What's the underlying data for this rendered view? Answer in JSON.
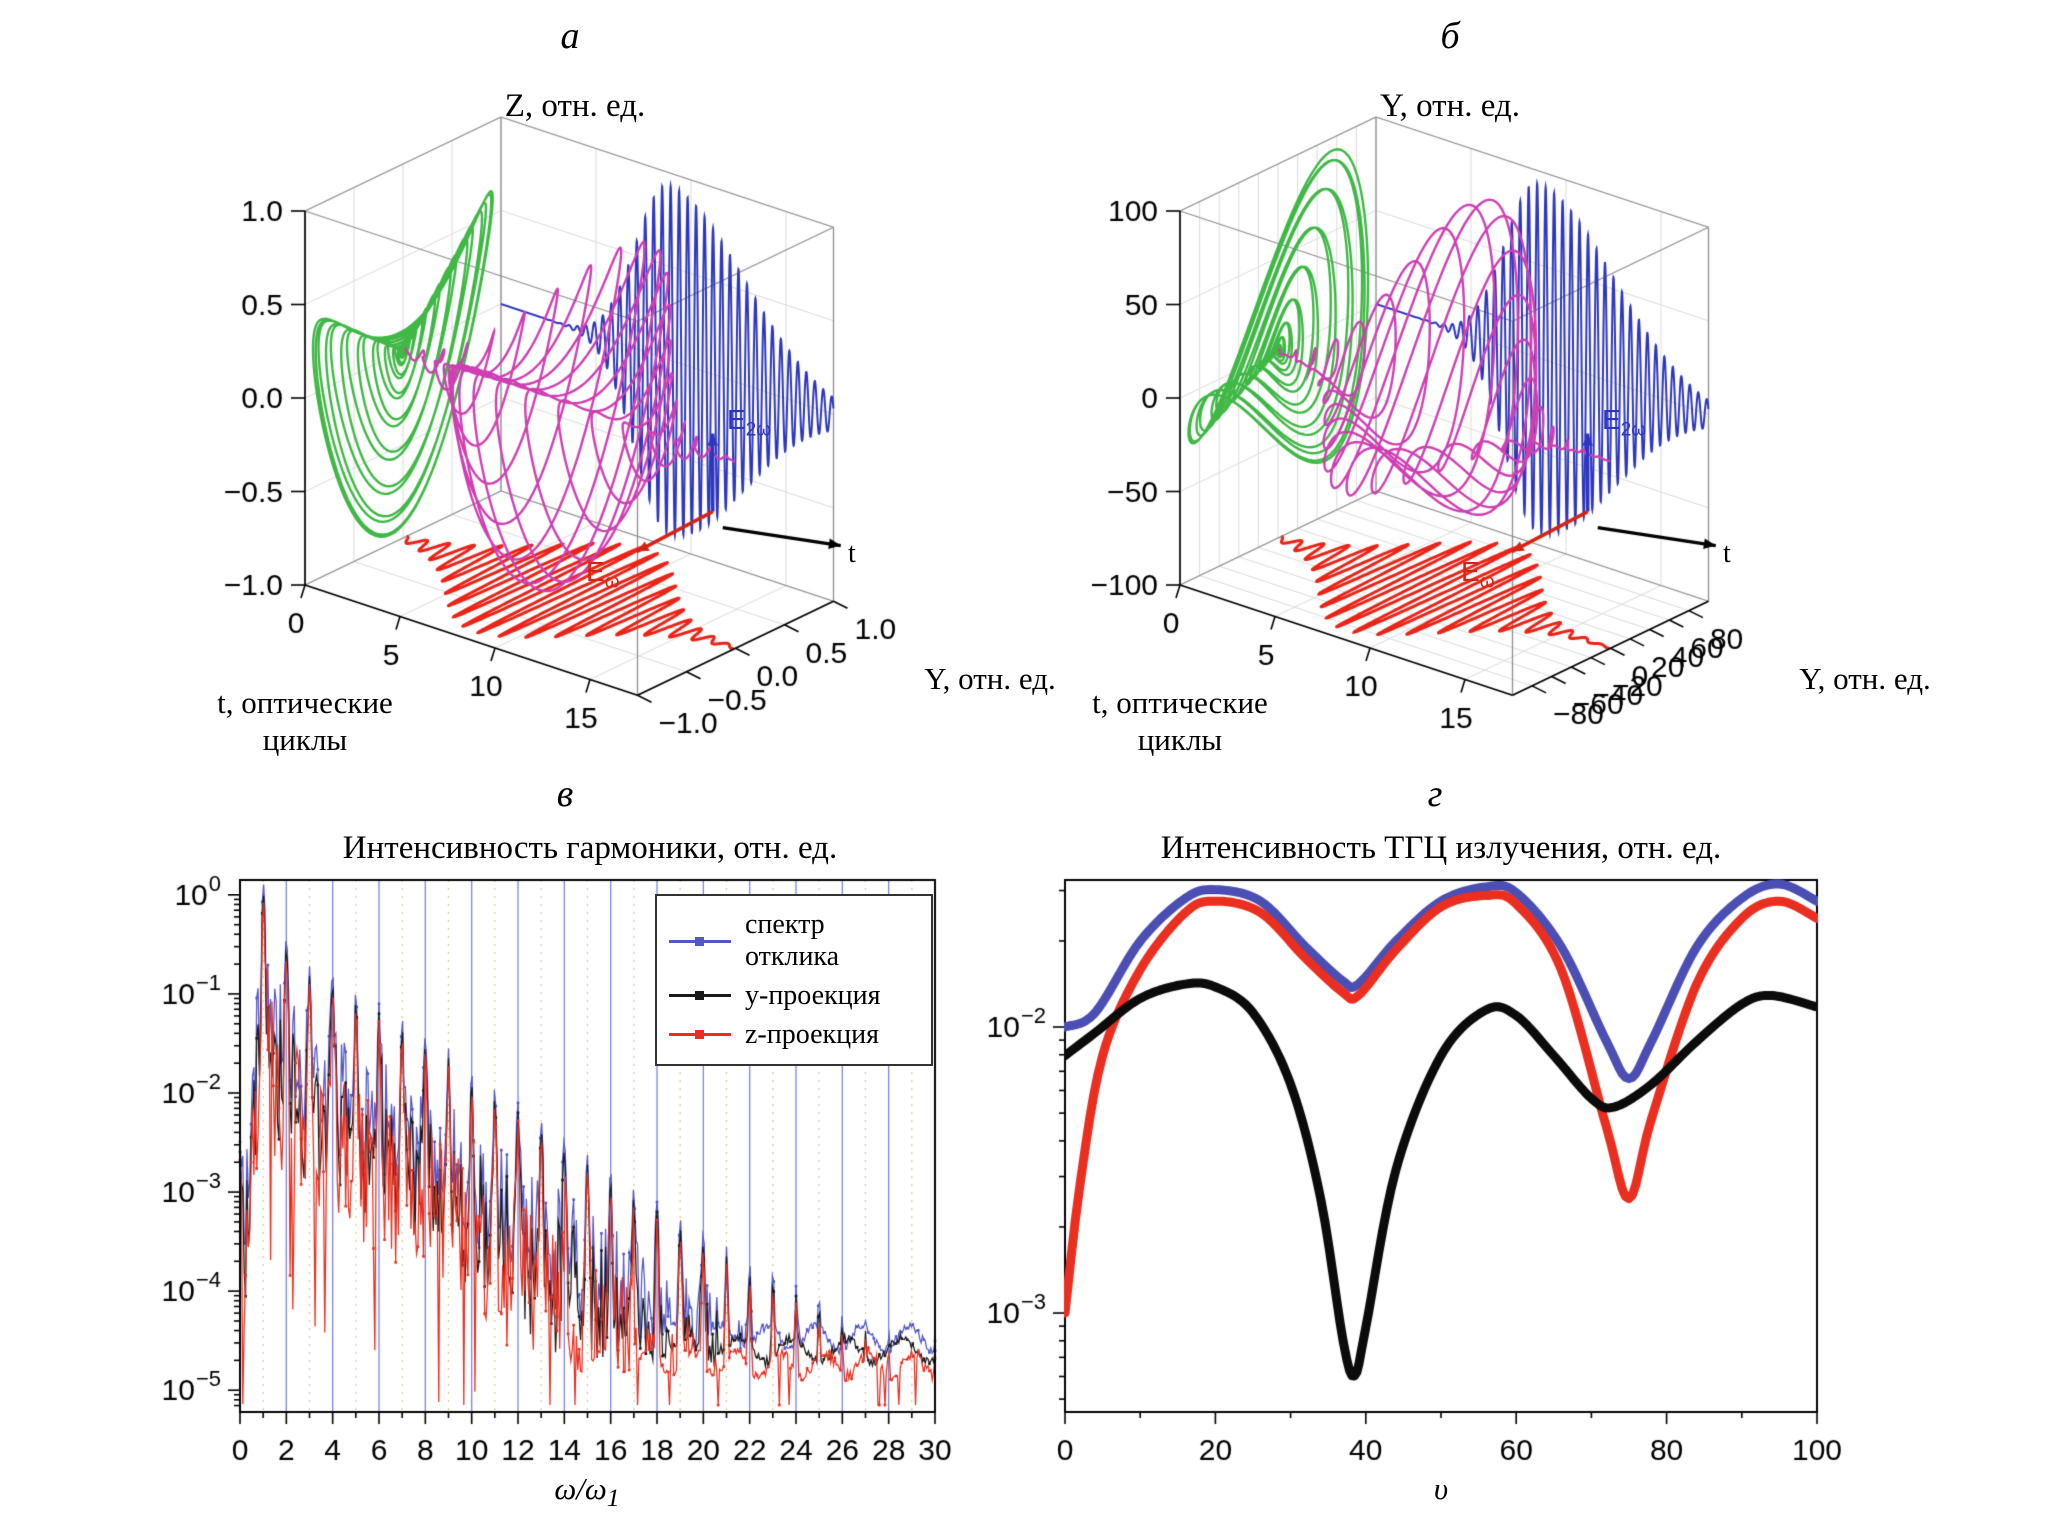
{
  "figure": {
    "background": "#ffffff"
  },
  "chart_data": [
    {
      "id": "a",
      "type": "3d-trajectory",
      "panel_label": "а",
      "title": "Z, отн. ед.",
      "axes": {
        "z": {
          "ticks": [
            "1.0",
            "0.5",
            "0.0",
            "−0.5",
            "−1.0"
          ],
          "tick_values": [
            1,
            0.5,
            0,
            -0.5,
            -1
          ],
          "scale": 1,
          "range": [
            -1,
            1
          ]
        },
        "t": {
          "label": "t, оптические циклы",
          "ticks": [
            "0",
            "5",
            "10",
            "15"
          ],
          "tick_values": [
            0,
            5,
            10,
            15
          ],
          "range": [
            0,
            17.5
          ]
        },
        "y": {
          "label": "Y, отн. ед.",
          "ticks": [
            "−1.0",
            "−0.5",
            "0.0",
            "0.5",
            "1.0"
          ],
          "tick_values": [
            -1,
            -0.5,
            0,
            0.5,
            1
          ],
          "scale": 1,
          "range": [
            -1,
            1
          ]
        }
      },
      "series": [
        {
          "name": "yz-projection",
          "color": "#3fb845"
        },
        {
          "name": "3d-trajectory",
          "color": "#cf3fb3"
        },
        {
          "name": "second-harmonic-waveform",
          "color": "#2d36c0"
        },
        {
          "name": "fundamental-waveform",
          "color": "#ec2317"
        }
      ],
      "annotations": [
        {
          "base": "E",
          "sub": "2ω",
          "color": "#2d36c0"
        },
        {
          "base": "E",
          "sub": "ω",
          "color": "#d42414"
        },
        {
          "base": "t",
          "sub": "",
          "color": "#000000"
        }
      ],
      "signal": {
        "env_center": 8.3,
        "env_sigma": 2.9,
        "f_fund": 1.12,
        "f_sh": 2.24,
        "phase": 0.2
      }
    },
    {
      "id": "b",
      "type": "3d-trajectory",
      "panel_label": "б",
      "title": "Y, отн. ед.",
      "axes": {
        "z": {
          "ticks": [
            "100",
            "50",
            "0",
            "−50",
            "−100"
          ],
          "tick_values": [
            100,
            50,
            0,
            -50,
            -100
          ],
          "scale": 100,
          "range": [
            -100,
            100
          ]
        },
        "t": {
          "label": "t, оптические циклы",
          "ticks": [
            "0",
            "5",
            "10",
            "15"
          ],
          "tick_values": [
            0,
            5,
            10,
            15
          ],
          "range": [
            0,
            17.5
          ]
        },
        "y": {
          "label": "Y, отн. ед.",
          "ticks": [
            "−80",
            "−60",
            "−40",
            "−20",
            "0",
            "20",
            "40",
            "60",
            "80"
          ],
          "tick_values": [
            -80,
            -60,
            -40,
            -20,
            0,
            20,
            40,
            60,
            80
          ],
          "scale": 100,
          "range": [
            -100,
            100
          ]
        }
      },
      "series": [
        {
          "name": "yz-projection",
          "color": "#3fb845"
        },
        {
          "name": "3d-trajectory",
          "color": "#cf3fb3"
        },
        {
          "name": "second-harmonic-waveform",
          "color": "#2d36c0"
        },
        {
          "name": "fundamental-waveform",
          "color": "#ec2317"
        }
      ],
      "annotations": [
        {
          "base": "E",
          "sub": "2ω",
          "color": "#2d36c0"
        },
        {
          "base": "E",
          "sub": "ω",
          "color": "#d42414"
        },
        {
          "base": "t",
          "sub": "",
          "color": "#000000"
        }
      ],
      "signal": {
        "env_center": 8.0,
        "env_sigma": 2.7,
        "f_fund": 1.12,
        "f_sh": 2.24,
        "phase": 1.1
      }
    },
    {
      "id": "v",
      "type": "log-spectrum",
      "panel_label": "в",
      "title": "Интенсивность гармоники, отн. ед.",
      "xlabel_base": "ω/ω",
      "xlabel_sub": "1",
      "x_ticks": [
        "0",
        "2",
        "4",
        "6",
        "8",
        "10",
        "12",
        "14",
        "16",
        "18",
        "20",
        "22",
        "24",
        "26",
        "28",
        "30"
      ],
      "x_tick_values": [
        0,
        2,
        4,
        6,
        8,
        10,
        12,
        14,
        16,
        18,
        20,
        22,
        24,
        26,
        28,
        30
      ],
      "y_tick_exponents": [
        0,
        -1,
        -2,
        -3,
        -4,
        -5
      ],
      "x_range": [
        0,
        30
      ],
      "y_range_exp": [
        -5.22,
        0.15
      ],
      "gridline_color": "#7d85d8",
      "minor_grid_color": "#dcc793",
      "legend": [
        {
          "label": "спектр отклика",
          "color": "#5157c8"
        },
        {
          "label": "y-проекция",
          "color": "#1a1a1a"
        },
        {
          "label": "z-проекция",
          "color": "#ea2e1f"
        }
      ],
      "envelope_log10": [
        [
          0,
          -2.5
        ],
        [
          0.7,
          -0.75
        ],
        [
          1,
          -0.15
        ],
        [
          2,
          -0.45
        ],
        [
          3,
          -0.72
        ],
        [
          4,
          -0.8
        ],
        [
          5,
          -0.98
        ],
        [
          6,
          -1.1
        ],
        [
          7,
          -1.25
        ],
        [
          8,
          -1.4
        ],
        [
          9,
          -1.55
        ],
        [
          10,
          -1.8
        ],
        [
          12,
          -2.1
        ],
        [
          14,
          -2.45
        ],
        [
          16,
          -2.8
        ],
        [
          18,
          -3.1
        ],
        [
          20,
          -3.4
        ],
        [
          22,
          -3.7
        ],
        [
          24,
          -3.95
        ],
        [
          26,
          -4.2
        ],
        [
          28,
          -4.4
        ],
        [
          30,
          -4.5
        ]
      ]
    },
    {
      "id": "g",
      "type": "log-line",
      "panel_label": "г",
      "title": "Интенсивность ТГЦ излучения, отн. ед.",
      "xlabel": "υ",
      "x_ticks": [
        "0",
        "20",
        "40",
        "60",
        "80",
        "100"
      ],
      "x_tick_values": [
        0,
        20,
        40,
        60,
        80,
        100
      ],
      "y_tick_exponents": [
        -2,
        -3
      ],
      "x_range": [
        0,
        100
      ],
      "y_range_exp": [
        -3.346,
        -1.486
      ],
      "series": [
        {
          "name": "total-spectrum",
          "color": "#4b4fb4",
          "points_log10": [
            [
              0,
              -2.0
            ],
            [
              4,
              -1.95
            ],
            [
              10,
              -1.7
            ],
            [
              16,
              -1.55
            ],
            [
              20,
              -1.52
            ],
            [
              26,
              -1.56
            ],
            [
              32,
              -1.72
            ],
            [
              37,
              -1.84
            ],
            [
              39,
              -1.85
            ],
            [
              44,
              -1.7
            ],
            [
              50,
              -1.56
            ],
            [
              56,
              -1.51
            ],
            [
              60,
              -1.53
            ],
            [
              66,
              -1.72
            ],
            [
              72,
              -2.05
            ],
            [
              75,
              -2.18
            ],
            [
              78,
              -2.05
            ],
            [
              84,
              -1.72
            ],
            [
              90,
              -1.55
            ],
            [
              95,
              -1.5
            ],
            [
              100,
              -1.56
            ]
          ]
        },
        {
          "name": "z-projection",
          "color": "#ea2e1f",
          "points_log10": [
            [
              0,
              -3.0
            ],
            [
              2,
              -2.55
            ],
            [
              5,
              -2.1
            ],
            [
              10,
              -1.8
            ],
            [
              16,
              -1.6
            ],
            [
              20,
              -1.56
            ],
            [
              26,
              -1.6
            ],
            [
              32,
              -1.76
            ],
            [
              37,
              -1.88
            ],
            [
              39,
              -1.89
            ],
            [
              44,
              -1.73
            ],
            [
              50,
              -1.58
            ],
            [
              56,
              -1.54
            ],
            [
              60,
              -1.57
            ],
            [
              66,
              -1.8
            ],
            [
              72,
              -2.35
            ],
            [
              75,
              -2.6
            ],
            [
              78,
              -2.32
            ],
            [
              84,
              -1.85
            ],
            [
              90,
              -1.62
            ],
            [
              95,
              -1.56
            ],
            [
              100,
              -1.62
            ]
          ]
        },
        {
          "name": "y-projection",
          "color": "#0b0b0b",
          "points_log10": [
            [
              0,
              -2.1
            ],
            [
              4,
              -2.02
            ],
            [
              10,
              -1.9
            ],
            [
              16,
              -1.85
            ],
            [
              20,
              -1.86
            ],
            [
              25,
              -1.95
            ],
            [
              30,
              -2.2
            ],
            [
              34,
              -2.6
            ],
            [
              37,
              -3.1
            ],
            [
              38.5,
              -3.22
            ],
            [
              40,
              -3.05
            ],
            [
              44,
              -2.5
            ],
            [
              50,
              -2.1
            ],
            [
              56,
              -1.94
            ],
            [
              60,
              -1.96
            ],
            [
              65,
              -2.1
            ],
            [
              70,
              -2.25
            ],
            [
              73,
              -2.28
            ],
            [
              78,
              -2.2
            ],
            [
              84,
              -2.05
            ],
            [
              90,
              -1.92
            ],
            [
              94,
              -1.89
            ],
            [
              100,
              -1.93
            ]
          ]
        }
      ]
    }
  ]
}
